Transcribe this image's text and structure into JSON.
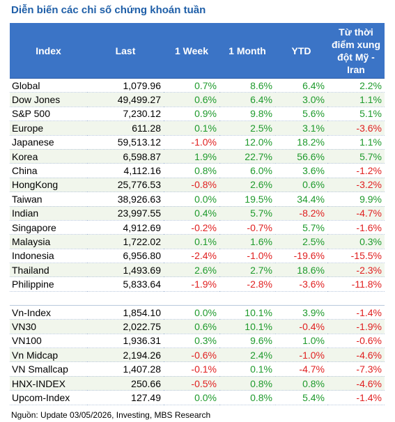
{
  "title": "Diễn biến các chỉ số chứng khoán tuần",
  "table": {
    "header": [
      "Index",
      "Last",
      "1 Week",
      "1 Month",
      "YTD",
      "Từ thời điểm xung đột Mỹ - Iran"
    ],
    "groups": [
      [
        [
          "Global",
          "1,079.96",
          "0.7%",
          "8.6%",
          "6.4%",
          "2.2%"
        ],
        [
          "Dow Jones",
          "49,499.27",
          "0.6%",
          "6.4%",
          "3.0%",
          "1.1%"
        ],
        [
          "S&P 500",
          "7,230.12",
          "0.9%",
          "9.8%",
          "5.6%",
          "5.1%"
        ],
        [
          "Europe",
          "611.28",
          "0.1%",
          "2.5%",
          "3.1%",
          "-3.6%"
        ],
        [
          "Japanese",
          "59,513.12",
          "-1.0%",
          "12.0%",
          "18.2%",
          "1.1%"
        ],
        [
          "Korea",
          "6,598.87",
          "1.9%",
          "22.7%",
          "56.6%",
          "5.7%"
        ],
        [
          "China",
          "4,112.16",
          "0.8%",
          "6.0%",
          "3.6%",
          "-1.2%"
        ],
        [
          "HongKong",
          "25,776.53",
          "-0.8%",
          "2.6%",
          "0.6%",
          "-3.2%"
        ],
        [
          "Taiwan",
          "38,926.63",
          "0.0%",
          "19.5%",
          "34.4%",
          "9.9%"
        ],
        [
          "Indian",
          "23,997.55",
          "0.4%",
          "5.7%",
          "-8.2%",
          "-4.7%"
        ],
        [
          "Singapore",
          "4,912.69",
          "-0.2%",
          "-0.7%",
          "5.7%",
          "-1.6%"
        ],
        [
          "Malaysia",
          "1,722.02",
          "0.1%",
          "1.6%",
          "2.5%",
          "0.3%"
        ],
        [
          "Indonesia",
          "6,956.80",
          "-2.4%",
          "-1.0%",
          "-19.6%",
          "-15.5%"
        ],
        [
          "Thailand",
          "1,493.69",
          "2.6%",
          "2.7%",
          "18.6%",
          "-2.3%"
        ],
        [
          "Philippine",
          "5,833.64",
          "-1.9%",
          "-2.8%",
          "-3.6%",
          "-11.8%"
        ]
      ],
      [
        [
          "Vn-Index",
          "1,854.10",
          "0.0%",
          "10.1%",
          "3.9%",
          "-1.4%"
        ],
        [
          "VN30",
          "2,022.75",
          "0.6%",
          "10.1%",
          "-0.4%",
          "-1.9%"
        ],
        [
          "VN100",
          "1,936.31",
          "0.3%",
          "9.6%",
          "1.0%",
          "-0.6%"
        ],
        [
          "Vn Midcap",
          "2,194.26",
          "-0.6%",
          "2.4%",
          "-1.0%",
          "-4.6%"
        ],
        [
          "VN Smallcap",
          "1,407.28",
          "-0.1%",
          "0.1%",
          "-4.7%",
          "-7.3%"
        ],
        [
          "HNX-INDEX",
          "250.66",
          "-0.5%",
          "0.8%",
          "0.8%",
          "-4.6%"
        ],
        [
          "Upcom-Index",
          "127.49",
          "0.0%",
          "0.8%",
          "5.4%",
          "-1.4%"
        ]
      ]
    ]
  },
  "source": "Nguồn: Update  03/05/2026, Investing, MBS Research"
}
